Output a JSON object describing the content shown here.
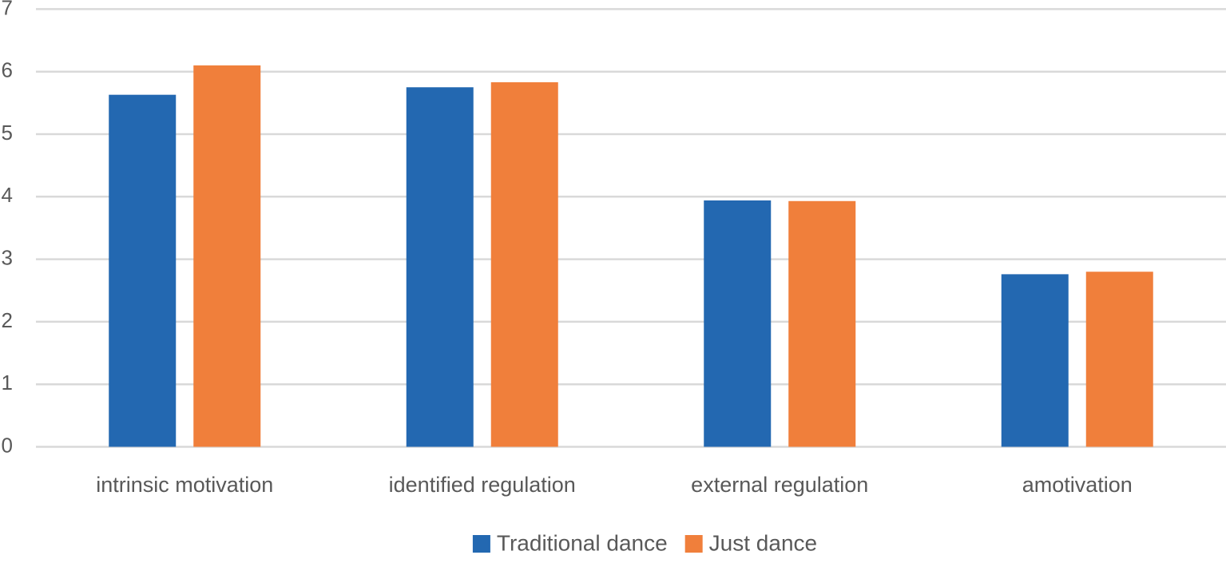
{
  "chart_data": {
    "type": "bar",
    "categories": [
      "intrinsic motivation",
      "identified regulation",
      "external regulation",
      "amotivation"
    ],
    "series": [
      {
        "name": "Traditional dance",
        "values": [
          5.63,
          5.75,
          3.94,
          2.76
        ],
        "color": "#2368B1"
      },
      {
        "name": "Just dance",
        "values": [
          6.1,
          5.83,
          3.93,
          2.8
        ],
        "color": "#F07F3B"
      }
    ],
    "y_ticks": [
      "0",
      "1",
      "2",
      "3",
      "4",
      "5",
      "6",
      "7"
    ],
    "ylim": [
      0,
      7
    ],
    "grid": true,
    "grid_color": "#D9D9D9",
    "text_color": "#595959",
    "legend_position": "bottom-center"
  }
}
